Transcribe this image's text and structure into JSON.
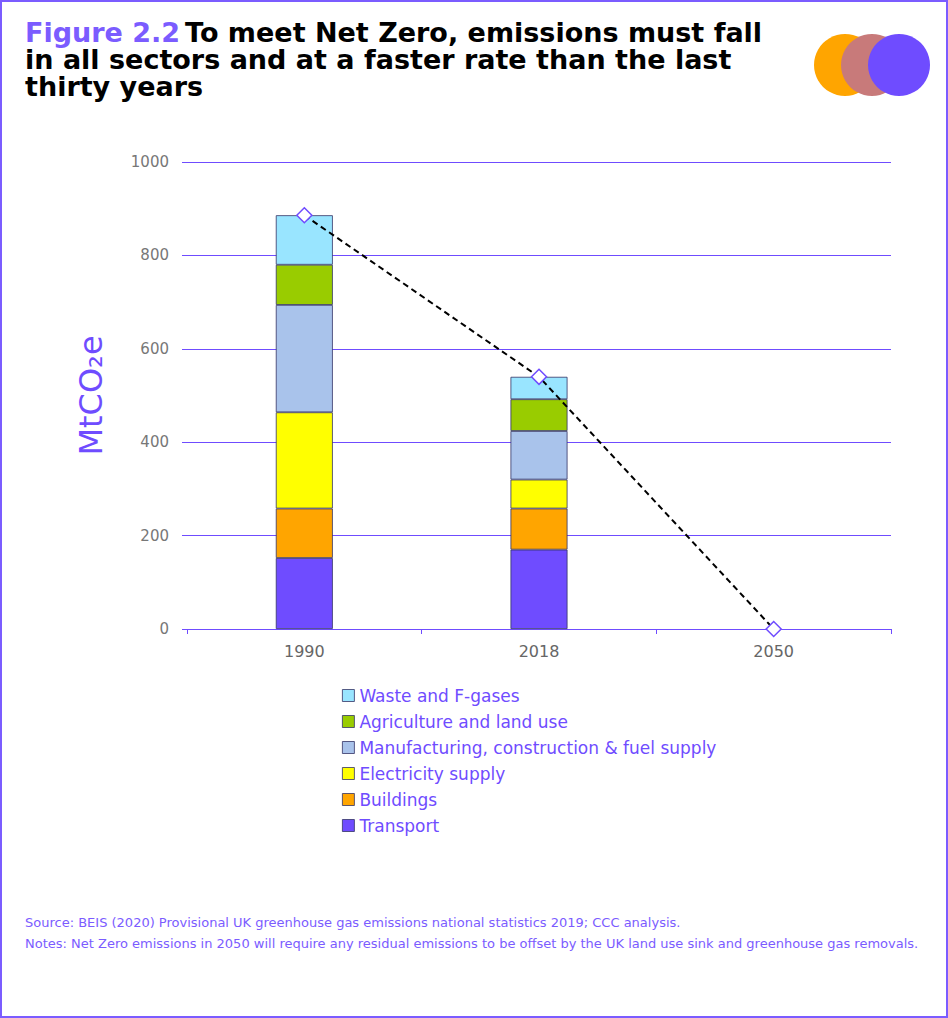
{
  "chart_data": {
    "type": "bar",
    "figure_number": "Figure 2.2",
    "title_lines": [
      "To meet Net Zero, emissions must fall",
      "in all sectors and at a faster rate than the last",
      "thirty years"
    ],
    "y_label": "MtCO₂e",
    "categories": [
      "1990",
      "2018",
      "2050"
    ],
    "stacked": true,
    "grid": true,
    "legend": "bottom",
    "ylim": [
      0,
      1000
    ],
    "yticks": [
      0,
      200,
      400,
      600,
      800,
      1000
    ],
    "series": [
      {
        "name": "Transport",
        "color": "#6f4cff",
        "values": [
          152,
          170,
          null
        ]
      },
      {
        "name": "Buildings",
        "color": "#ffa500",
        "values": [
          106,
          88,
          null
        ]
      },
      {
        "name": "Electricity supply",
        "color": "#ffff00",
        "values": [
          206,
          62,
          null
        ]
      },
      {
        "name": "Manufacturing, construction & fuel supply",
        "color": "#a9c3eb",
        "values": [
          230,
          104,
          null
        ]
      },
      {
        "name": "Agriculture and land use",
        "color": "#99cc00",
        "values": [
          86,
          68,
          null
        ]
      },
      {
        "name": "Waste and F-gases",
        "color": "#99e5ff",
        "values": [
          106,
          48,
          null
        ]
      },
      {
        "type": "line",
        "color": "#000000",
        "marker": "diamond",
        "line_style": "dashed",
        "values": [
          886,
          540,
          0
        ]
      }
    ],
    "source": "Source: BEIS (2020) Provisional UK greenhouse gas emissions national statistics 2019; CCC analysis.",
    "notes": "Notes: Net Zero emissions in 2050 will require any residual emissions to be offset by the UK land use sink and greenhouse gas removals."
  }
}
